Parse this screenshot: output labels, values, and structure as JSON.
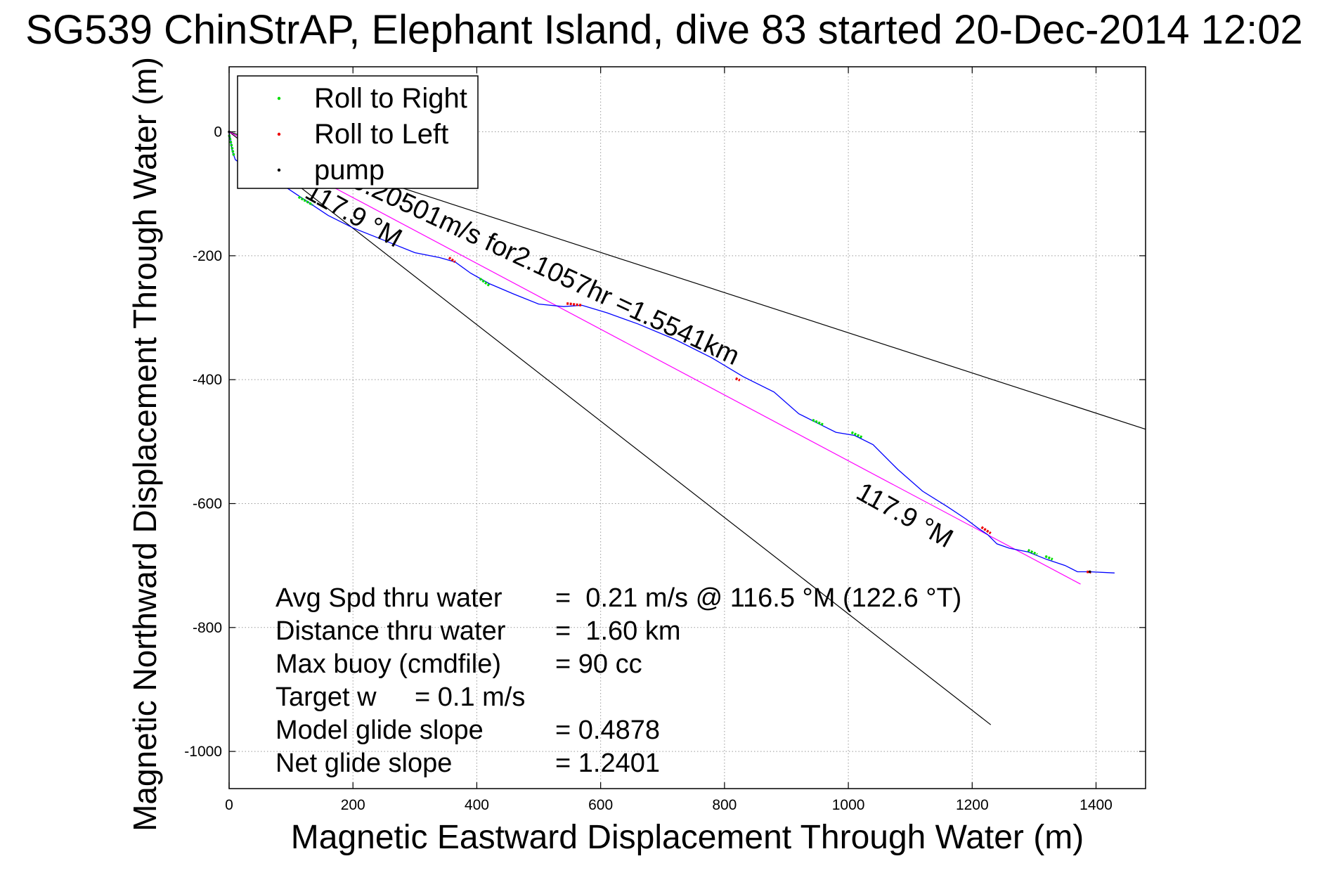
{
  "chart_data": {
    "type": "line",
    "title": "SG539 ChinStrAP, Elephant Island, dive 83 started 20-Dec-2014 12:02",
    "xlabel": "Magnetic Eastward Displacement Through Water (m)",
    "ylabel": "Magnetic Northward Displacement Through Water (m)",
    "xlim": [
      0,
      1480
    ],
    "ylim": [
      -1060,
      105
    ],
    "xticks": [
      0,
      200,
      400,
      600,
      800,
      1000,
      1200,
      1400
    ],
    "yticks": [
      -1000,
      -800,
      -600,
      -400,
      -200,
      0
    ],
    "grid": true,
    "legend_position": "top-left",
    "legend": [
      {
        "label": "Roll to Right",
        "color": "#00dd00"
      },
      {
        "label": "Roll to Left",
        "color": "#ee0000"
      },
      {
        "label": "pump",
        "color": "#000000"
      }
    ],
    "track": {
      "name": "track",
      "color": "#0000ff",
      "x": [
        0,
        5,
        10,
        20,
        40,
        70,
        100,
        130,
        160,
        200,
        250,
        300,
        340,
        365,
        390,
        420,
        460,
        500,
        540,
        570,
        610,
        660,
        720,
        780,
        830,
        880,
        920,
        950,
        980,
        1010,
        1040,
        1080,
        1120,
        1160,
        1190,
        1210,
        1225,
        1240,
        1260,
        1290,
        1320,
        1350,
        1370,
        1390,
        1430
      ],
      "y": [
        0,
        -30,
        -45,
        -52,
        -60,
        -75,
        -95,
        -115,
        -135,
        -155,
        -175,
        -195,
        -203,
        -210,
        -228,
        -245,
        -262,
        -278,
        -282,
        -280,
        -292,
        -310,
        -335,
        -365,
        -395,
        -420,
        -455,
        -470,
        -485,
        -490,
        -505,
        -545,
        -580,
        -605,
        -625,
        -640,
        -650,
        -665,
        -672,
        -678,
        -690,
        -700,
        -710,
        -710,
        -712
      ]
    },
    "roll_right_segments": [
      {
        "x": [
          0,
          8
        ],
        "y": [
          -5,
          -40
        ]
      },
      {
        "x": [
          112,
          135
        ],
        "y": [
          -105,
          -118
        ]
      },
      {
        "x": [
          405,
          420
        ],
        "y": [
          -237,
          -248
        ]
      },
      {
        "x": [
          942,
          960
        ],
        "y": [
          -465,
          -473
        ]
      },
      {
        "x": [
          1005,
          1022
        ],
        "y": [
          -485,
          -493
        ]
      },
      {
        "x": [
          1290,
          1305
        ],
        "y": [
          -675,
          -682
        ]
      },
      {
        "x": [
          1318,
          1330
        ],
        "y": [
          -685,
          -690
        ]
      }
    ],
    "roll_left_segments": [
      {
        "x": [
          355,
          365
        ],
        "y": [
          -203,
          -210
        ]
      },
      {
        "x": [
          545,
          570
        ],
        "y": [
          -277,
          -280
        ]
      },
      {
        "x": [
          818,
          825
        ],
        "y": [
          -398,
          -401
        ]
      },
      {
        "x": [
          1215,
          1230
        ],
        "y": [
          -638,
          -648
        ]
      },
      {
        "x": [
          1385,
          1392
        ],
        "y": [
          -710,
          -711
        ]
      }
    ],
    "pump_points": {
      "x": [
        0,
        1390
      ],
      "y": [
        0,
        -710
      ]
    },
    "reference_lines": [
      {
        "name": "upper-bound-line",
        "color": "#000000",
        "x": [
          0,
          1480
        ],
        "y": [
          0,
          -480
        ]
      },
      {
        "name": "lower-bound-line",
        "color": "#000000",
        "x": [
          0,
          1230
        ],
        "y": [
          0,
          -957
        ]
      },
      {
        "name": "heading-line",
        "color": "#ff00ff",
        "x": [
          0,
          1375
        ],
        "y": [
          0,
          -730
        ]
      }
    ],
    "annotations": [
      {
        "text": "117.9 °M",
        "x": 120,
        "y": -105,
        "angle": 29
      },
      {
        "text": "0.20501m/s for2.1057hr =1.5541km",
        "x": 195,
        "y": -88,
        "angle": 25
      },
      {
        "text": "117.9 °M",
        "x": 1010,
        "y": -590,
        "angle": 29
      }
    ],
    "stats": [
      {
        "label": "Avg Spd thru water",
        "value": "=  0.21 m/s @ 116.5 °M (122.6 °T)"
      },
      {
        "label": "Distance thru water",
        "value": "=  1.60 km"
      },
      {
        "label": "Max buoy (cmdfile)",
        "value": "= 90 cc"
      },
      {
        "label": "Target w",
        "value": "= 0.1 m/s"
      },
      {
        "label": "Model glide slope",
        "value": "= 0.4878"
      },
      {
        "label": "Net glide slope",
        "value": "= 1.2401"
      }
    ]
  }
}
